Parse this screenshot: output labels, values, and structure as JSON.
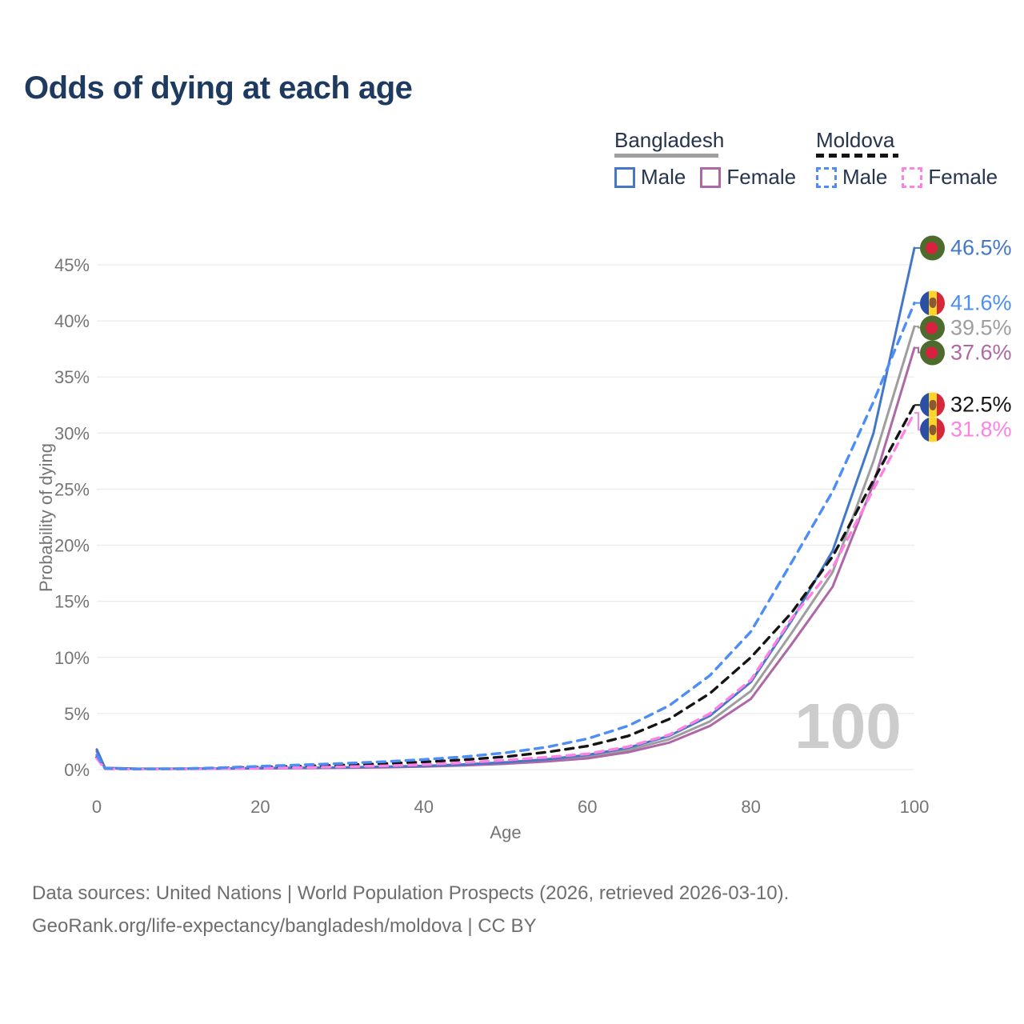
{
  "title": "Odds of dying at each age",
  "watermark_age": "100",
  "legend": {
    "groups": [
      {
        "name": "Bangladesh",
        "line_style": "solid",
        "underline_color": "#9e9e9e",
        "items": [
          {
            "label": "Male",
            "color": "#4377c8"
          },
          {
            "label": "Female",
            "color": "#ad68a5"
          }
        ]
      },
      {
        "name": "Moldova",
        "line_style": "dashed",
        "underline_color": "#141414",
        "items": [
          {
            "label": "Male",
            "color": "#4d8df6"
          },
          {
            "label": "Female",
            "color": "#ff82e2"
          }
        ]
      }
    ]
  },
  "axes": {
    "x_label": "Age",
    "y_label": "Probability of dying",
    "x_tick_values": [
      0,
      20,
      40,
      60,
      80,
      100
    ],
    "x_tick_labels": [
      "0",
      "20",
      "40",
      "60",
      "80",
      "100"
    ],
    "y_tick_values": [
      0,
      5,
      10,
      15,
      20,
      25,
      30,
      35,
      40,
      45
    ],
    "y_tick_labels": [
      "0%",
      "5%",
      "10%",
      "15%",
      "20%",
      "25%",
      "30%",
      "35%",
      "40%",
      "45%"
    ]
  },
  "flags": {
    "bangladesh": {
      "field": "#4c6b2c",
      "disc": "#d8213f"
    },
    "moldova": {
      "blue": "#2b4fa5",
      "yellow": "#fdd428",
      "red": "#d5283a",
      "emblem": "#8a5a32"
    }
  },
  "colors": {
    "grid": "#ececec",
    "axis_text": "#757575",
    "title_text": "#1e3a5f",
    "watermark": "#cccccc"
  },
  "chart_data": {
    "type": "line",
    "title": "Odds of dying at each age",
    "xlabel": "Age",
    "ylabel": "Probability of dying",
    "xlim": [
      0,
      100
    ],
    "ylim": [
      0,
      47
    ],
    "grid": "horizontal",
    "legend_position": "top-right",
    "x": [
      0,
      1,
      5,
      10,
      15,
      20,
      25,
      30,
      35,
      40,
      45,
      50,
      55,
      60,
      65,
      70,
      75,
      80,
      85,
      90,
      95,
      100
    ],
    "series": [
      {
        "name": "Bangladesh (both sexes)",
        "country": "Bangladesh",
        "sex": "Both",
        "color": "#9e9e9e",
        "dash": "solid",
        "flag": "bangladesh",
        "end_label": "39.5%",
        "values": [
          1.7,
          0.14,
          0.07,
          0.08,
          0.09,
          0.12,
          0.15,
          0.18,
          0.23,
          0.3,
          0.42,
          0.58,
          0.82,
          1.15,
          1.75,
          2.7,
          4.3,
          7.0,
          12.2,
          17.6,
          27.5,
          39.5
        ]
      },
      {
        "name": "Bangladesh Female",
        "country": "Bangladesh",
        "sex": "Female",
        "color": "#ad68a5",
        "dash": "solid",
        "flag": "bangladesh",
        "end_label": "37.6%",
        "values": [
          1.6,
          0.12,
          0.07,
          0.07,
          0.08,
          0.1,
          0.13,
          0.16,
          0.2,
          0.27,
          0.37,
          0.52,
          0.72,
          1.0,
          1.55,
          2.4,
          3.9,
          6.3,
          11.2,
          16.3,
          25.5,
          37.6
        ]
      },
      {
        "name": "Bangladesh Male",
        "country": "Bangladesh",
        "sex": "Male",
        "color": "#4377c8",
        "dash": "solid",
        "flag": "bangladesh",
        "end_label": "46.5%",
        "values": [
          1.8,
          0.15,
          0.08,
          0.08,
          0.1,
          0.14,
          0.17,
          0.2,
          0.26,
          0.33,
          0.46,
          0.65,
          0.92,
          1.3,
          1.95,
          3.0,
          4.8,
          7.8,
          13.3,
          19.5,
          30.0,
          46.5
        ]
      },
      {
        "name": "Moldova (both sexes)",
        "country": "Moldova",
        "sex": "Both",
        "color": "#141414",
        "dash": "dashed",
        "flag": "moldova",
        "end_label": "32.5%",
        "values": [
          1.1,
          0.09,
          0.05,
          0.06,
          0.12,
          0.22,
          0.3,
          0.4,
          0.52,
          0.68,
          0.88,
          1.15,
          1.55,
          2.1,
          3.0,
          4.5,
          6.8,
          10.0,
          14.0,
          19.0,
          25.8,
          32.5
        ]
      },
      {
        "name": "Moldova Female",
        "country": "Moldova",
        "sex": "Female",
        "color": "#ff82e2",
        "dash": "dashed",
        "flag": "moldova",
        "end_label": "31.8%",
        "values": [
          1.0,
          0.08,
          0.04,
          0.05,
          0.09,
          0.13,
          0.18,
          0.25,
          0.33,
          0.45,
          0.62,
          0.85,
          1.1,
          1.4,
          2.05,
          3.1,
          5.0,
          8.0,
          13.5,
          18.0,
          25.0,
          31.8
        ]
      },
      {
        "name": "Moldova Male",
        "country": "Moldova",
        "sex": "Male",
        "color": "#4d8df6",
        "dash": "dashed",
        "flag": "moldova",
        "end_label": "41.6%",
        "values": [
          1.3,
          0.1,
          0.06,
          0.08,
          0.16,
          0.3,
          0.42,
          0.55,
          0.7,
          0.9,
          1.15,
          1.5,
          2.0,
          2.75,
          3.9,
          5.7,
          8.4,
          12.3,
          18.5,
          24.8,
          32.8,
          41.6
        ]
      }
    ]
  },
  "footer": {
    "line1": "Data sources: United Nations | World Population Prospects (2026, retrieved 2026-03-10).",
    "line2": "GeoRank.org/life-expectancy/bangladesh/moldova | CC BY"
  }
}
